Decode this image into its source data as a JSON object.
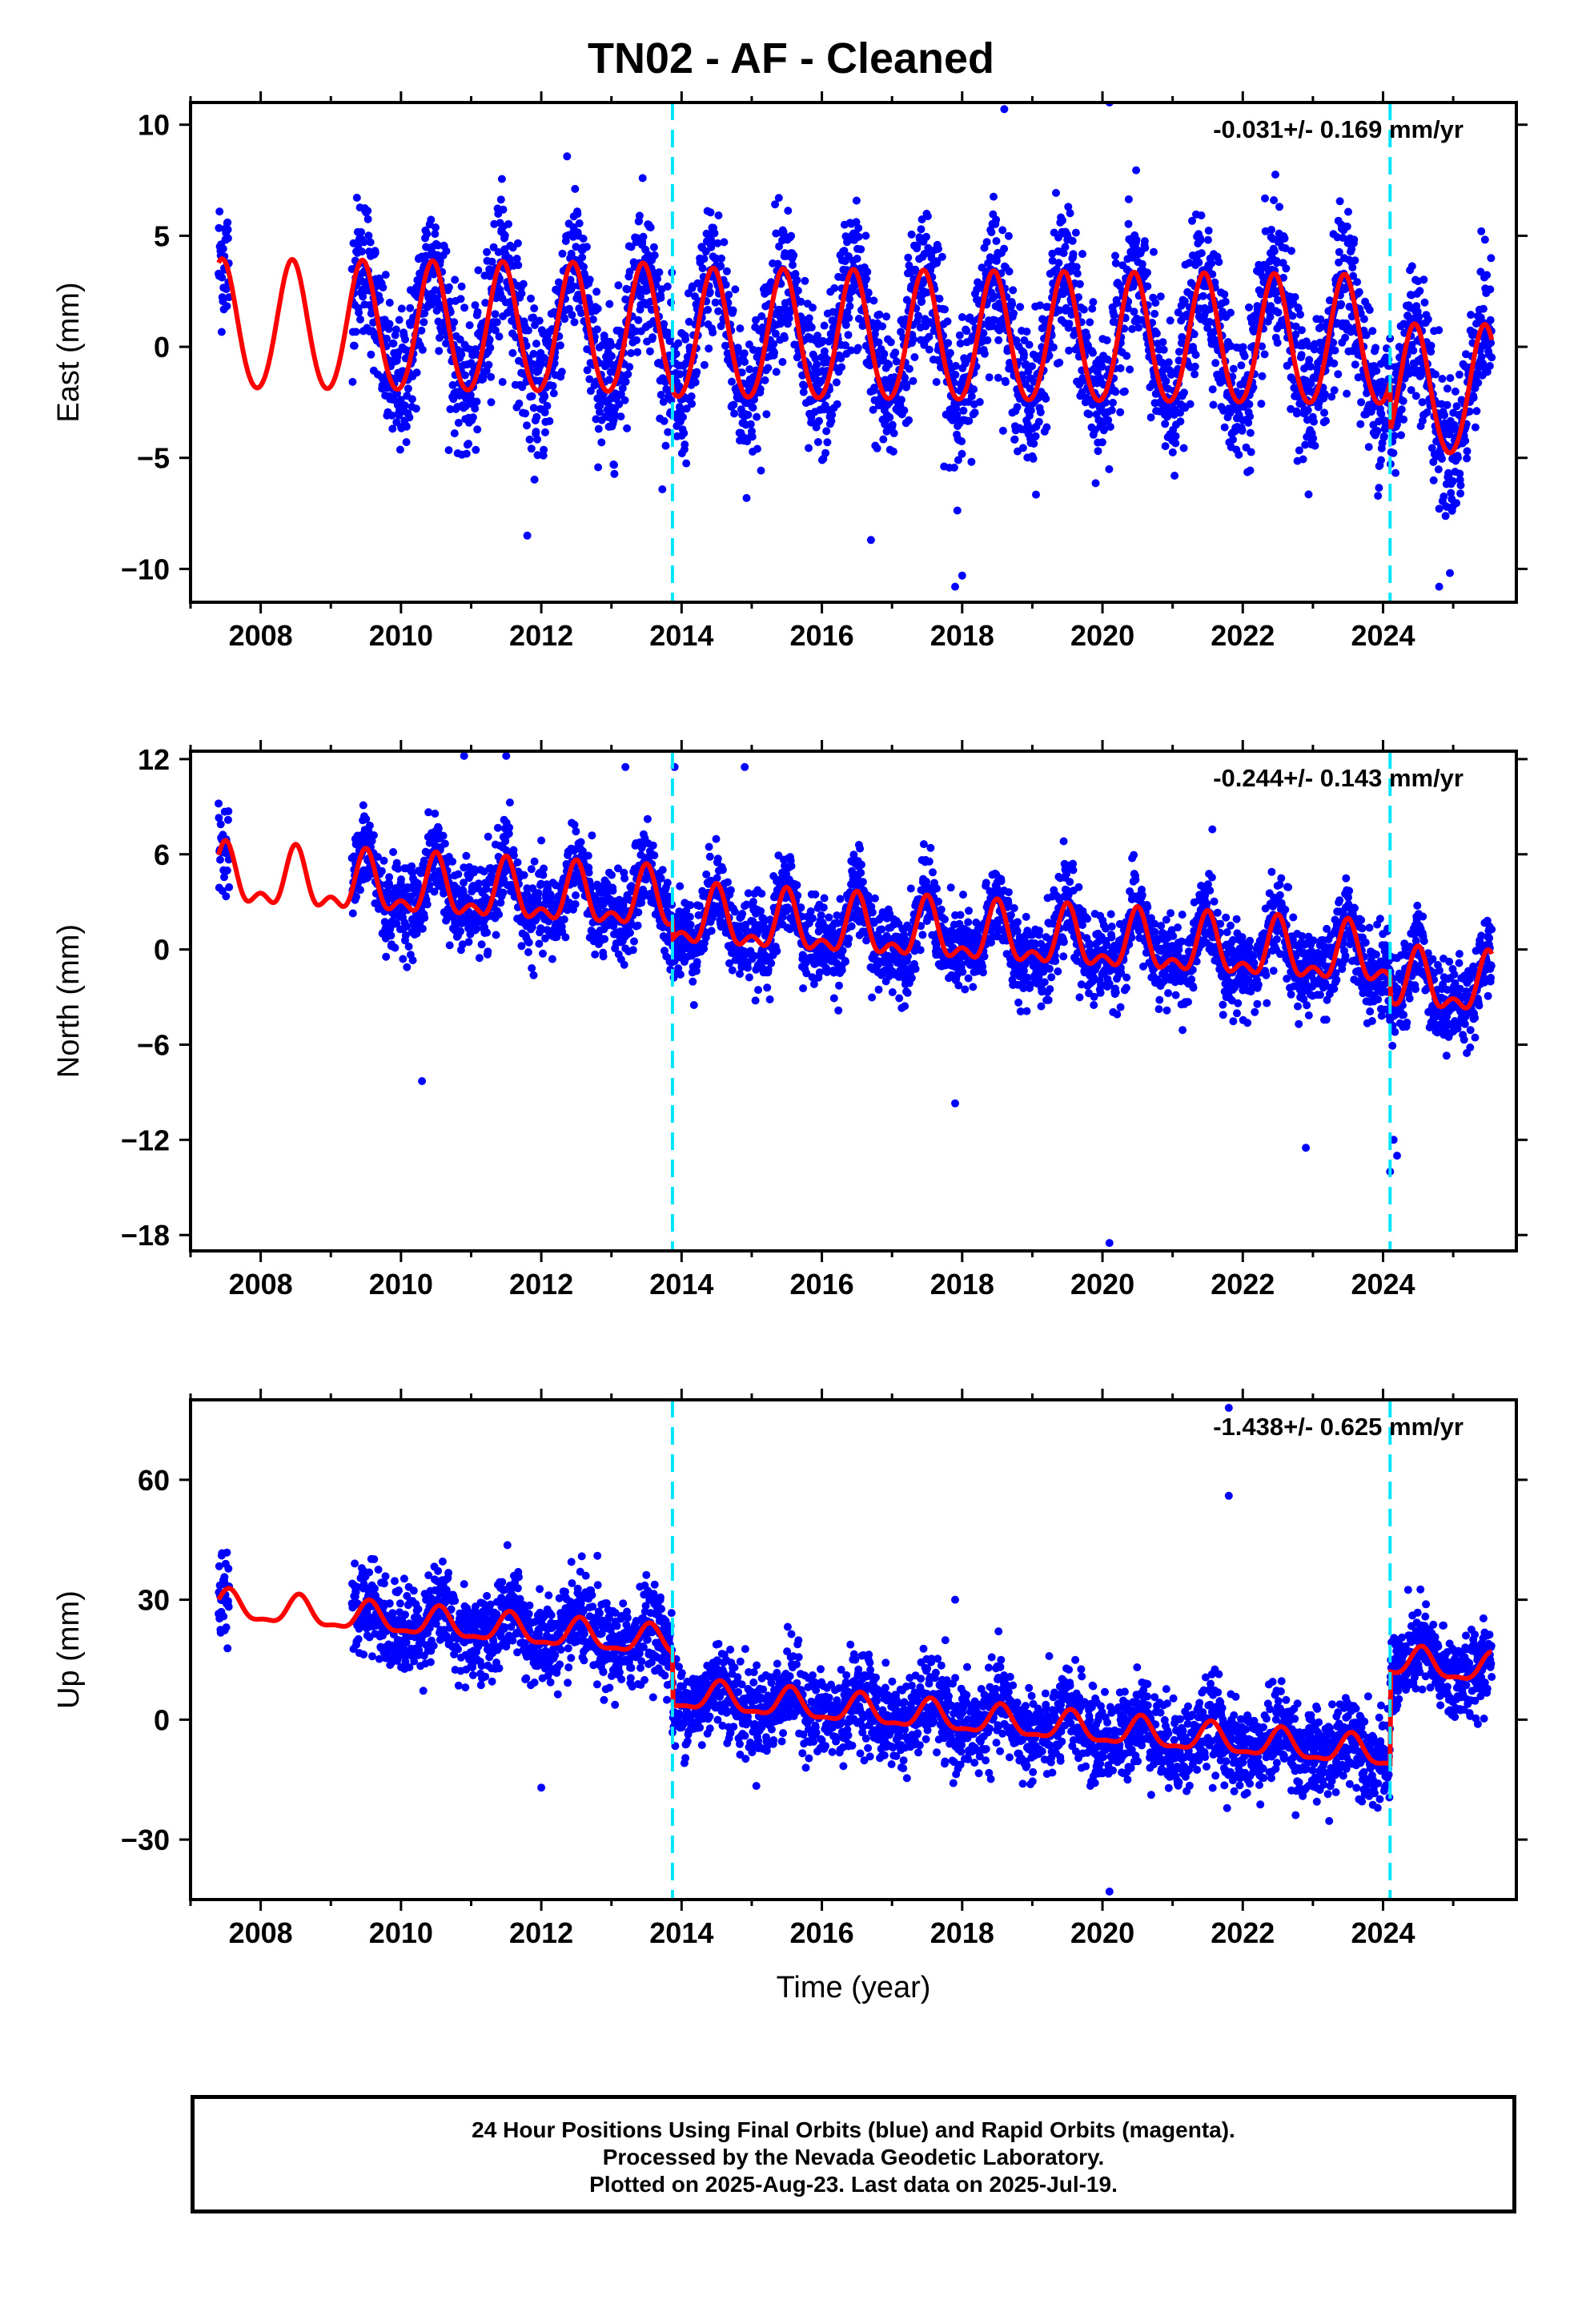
{
  "page": {
    "title": "TN02  - AF - Cleaned",
    "footer": [
      "24 Hour Positions Using Final Orbits (blue) and Rapid Orbits (magenta).",
      "Processed by the Nevada Geodetic Laboratory.",
      "Plotted on 2025-Aug-23. Last data on 2025-Jul-19."
    ]
  },
  "colors": {
    "points": "#0000ff",
    "model": "#ff0000",
    "steps": "#00e5ff",
    "frame": "#000000"
  },
  "chart_data": [
    {
      "type": "scatter",
      "ylabel": "East (mm)",
      "xlabel": "",
      "rate_text": "-0.031+/- 0.169 mm/yr",
      "xlim": [
        2007.0,
        2025.9
      ],
      "ylim": [
        -11.5,
        11.0
      ],
      "xticks": [
        2008,
        2010,
        2012,
        2014,
        2016,
        2018,
        2020,
        2022,
        2024
      ],
      "yticks": [
        -10,
        -5,
        0,
        5,
        10
      ],
      "ytick_labels": [
        "−10",
        "−5",
        "0",
        "5",
        "10"
      ],
      "steps": [
        2013.87,
        2024.1
      ],
      "data_range": [
        2007.4,
        2025.55
      ],
      "gap": [
        2007.55,
        2009.3
      ],
      "model": {
        "offset": 0.6,
        "trend": -0.031,
        "annual_amp": 2.9,
        "phase_year": 0.45,
        "semi_amp": 0.2,
        "step_offsets": [
          -0.2,
          -2.2
        ],
        "scatter_sd": 1.6
      },
      "outliers": [
        [
          2018.6,
          10.7
        ],
        [
          2020.1,
          11.0
        ],
        [
          2017.9,
          -10.8
        ],
        [
          2018.0,
          -10.3
        ],
        [
          2024.8,
          -10.8
        ],
        [
          2011.8,
          -8.5
        ],
        [
          2016.7,
          -8.7
        ]
      ]
    },
    {
      "type": "scatter",
      "ylabel": "North (mm)",
      "xlabel": "",
      "rate_text": "-0.244+/- 0.143 mm/yr",
      "xlim": [
        2007.0,
        2025.9
      ],
      "ylim": [
        -19.0,
        12.5
      ],
      "xticks": [
        2008,
        2010,
        2012,
        2014,
        2016,
        2018,
        2020,
        2022,
        2024
      ],
      "yticks": [
        -18,
        -12,
        -6,
        0,
        6,
        12
      ],
      "ytick_labels": [
        "−18",
        "−12",
        "−6",
        "0",
        "6",
        "12"
      ],
      "steps": [
        2013.87,
        2024.1
      ],
      "data_range": [
        2007.4,
        2025.55
      ],
      "gap": [
        2007.55,
        2009.3
      ],
      "model": {
        "offset": 2.3,
        "trend": -0.244,
        "annual_amp": 1.6,
        "phase_year": 0.5,
        "semi_amp": 0.9,
        "step_offsets": [
          -1.0,
          -1.5
        ],
        "scatter_sd": 1.3
      },
      "outliers": [
        [
          2010.9,
          12.2
        ],
        [
          2011.5,
          12.2
        ],
        [
          2013.2,
          11.5
        ],
        [
          2013.9,
          11.5
        ],
        [
          2014.9,
          11.5
        ],
        [
          2010.3,
          -8.3
        ],
        [
          2017.9,
          -9.7
        ],
        [
          2022.9,
          -12.5
        ],
        [
          2020.1,
          -18.5
        ],
        [
          2024.1,
          -14.0
        ],
        [
          2024.2,
          -13.0
        ],
        [
          2024.15,
          -12.0
        ]
      ]
    },
    {
      "type": "scatter",
      "ylabel": "Up (mm)",
      "xlabel": "Time (year)",
      "rate_text": "-1.438+/- 0.625 mm/yr",
      "xlim": [
        2007.0,
        2025.9
      ],
      "ylim": [
        -45.0,
        80.0
      ],
      "xticks": [
        2008,
        2010,
        2012,
        2014,
        2016,
        2018,
        2020,
        2022,
        2024
      ],
      "yticks": [
        -30,
        0,
        30,
        60
      ],
      "ytick_labels": [
        "−30",
        "0",
        "30",
        "60"
      ],
      "steps": [
        2013.87,
        2024.1
      ],
      "data_range": [
        2007.4,
        2025.55
      ],
      "gap": [
        2007.55,
        2009.3
      ],
      "model": {
        "offset": 16.0,
        "trend": -1.438,
        "annual_amp": 3.5,
        "phase_year": 0.55,
        "semi_amp": 1.2,
        "step_offsets": [
          -13.0,
          23.0
        ],
        "scatter_sd": 5.5
      },
      "outliers": [
        [
          2021.8,
          78.0
        ],
        [
          2021.8,
          56.0
        ],
        [
          2017.9,
          30.0
        ],
        [
          2012.0,
          -17.0
        ],
        [
          2020.1,
          -43.0
        ],
        [
          2012.8,
          41.0
        ]
      ]
    }
  ]
}
